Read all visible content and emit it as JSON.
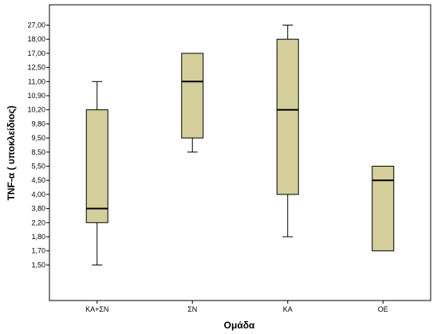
{
  "chart_data": {
    "type": "boxplot",
    "title": "",
    "xlabel": "Ομάδα",
    "ylabel": "TNF-α ( υποκλείδιος)",
    "y_axis_scale": "categorical-ordinal",
    "y_ticks": [
      "1,50",
      "1,70",
      "1,80",
      "2,20",
      "3,80",
      "4,00",
      "4,50",
      "5,50",
      "8,50",
      "9,50",
      "9,80",
      "10,20",
      "10,90",
      "11,00",
      "12,50",
      "17,00",
      "18,00",
      "27,00"
    ],
    "categories": [
      "ΚΑ+ΣΝ",
      "ΣΝ",
      "ΚΑ",
      "ΟΕ"
    ],
    "boxes": [
      {
        "category": "ΚΑ+ΣΝ",
        "min": "1,50",
        "q1": "2,20",
        "median": "3,80",
        "q3": "10,20",
        "max": "11,00"
      },
      {
        "category": "ΣΝ",
        "min": "8,50",
        "q1": "9,50",
        "median": "11,00",
        "q3": "17,00",
        "max": "17,00"
      },
      {
        "category": "ΚΑ",
        "min": "1,80",
        "q1": "4,00",
        "median": "10,20",
        "q3": "18,00",
        "max": "27,00"
      },
      {
        "category": "ΟΕ",
        "min": "1,70",
        "q1": "1,70",
        "median": "4,50",
        "q3": "5,50",
        "max": "5,50"
      }
    ],
    "box_fill": "#d4cf9a",
    "grid": false,
    "legend": "none"
  }
}
